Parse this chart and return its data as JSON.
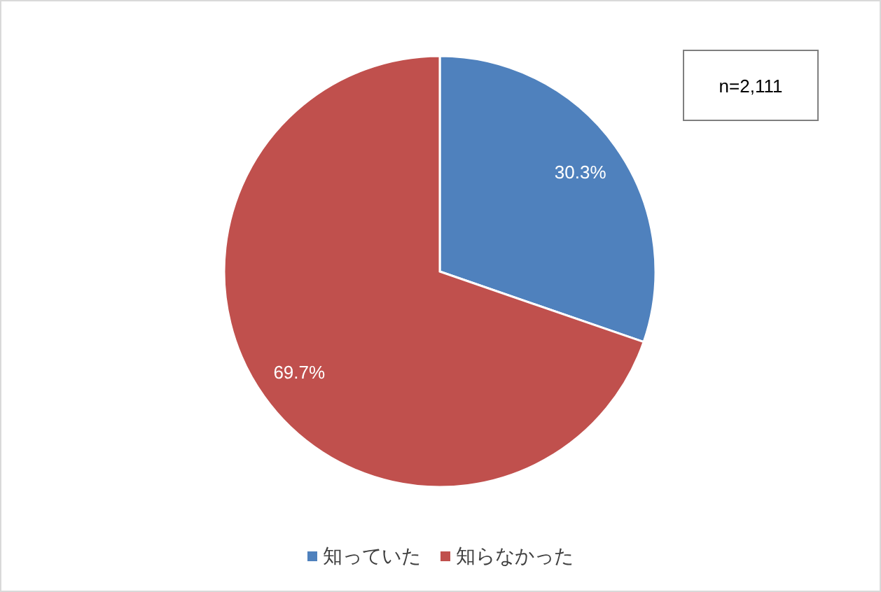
{
  "chart_data": {
    "type": "pie",
    "categories": [
      "知っていた",
      "知らなかった"
    ],
    "values": [
      30.3,
      69.7
    ],
    "colors": [
      "#4f81bd",
      "#c0504d"
    ],
    "value_labels": [
      "30.3%",
      "69.7%"
    ],
    "annotations": [
      "n=2,111"
    ],
    "legend": "bottom"
  }
}
